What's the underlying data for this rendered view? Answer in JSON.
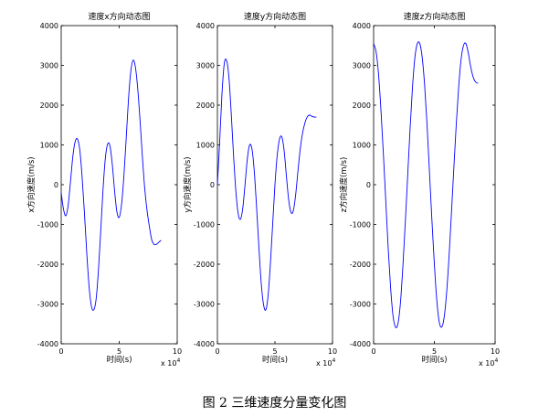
{
  "caption": "图 2  三维速度分量变化图",
  "chart_data": [
    {
      "type": "line",
      "title": "速度x方向动态图",
      "xlabel": "时间(s)",
      "ylabel": "x方向速度(m/s)",
      "xlim": [
        0,
        10
      ],
      "ylim": [
        -4000,
        4000
      ],
      "xticks": [
        0,
        5,
        10
      ],
      "yticks": [
        -4000,
        -3000,
        -2000,
        -1000,
        0,
        1000,
        2000,
        3000,
        4000
      ],
      "x_multiplier": "x 10^4",
      "grid": false,
      "series": [
        {
          "color": "#0000ff",
          "x": [
            0,
            0.2,
            0.4,
            0.6,
            0.8,
            1.0,
            1.2,
            1.4,
            1.6,
            1.8,
            2.0,
            2.2,
            2.4,
            2.6,
            2.8,
            3.0,
            3.2,
            3.4,
            3.6,
            3.8,
            4.0,
            4.2,
            4.4,
            4.6,
            4.8,
            5.0,
            5.2,
            5.4,
            5.6,
            5.8,
            6.0,
            6.2,
            6.4,
            6.6,
            6.8,
            7.0,
            7.2,
            7.4,
            7.6,
            7.8,
            8.0,
            8.2,
            8.4,
            8.6
          ],
          "y": [
            -200,
            -620,
            -780,
            -520,
            80,
            700,
            1080,
            1150,
            880,
            200,
            -700,
            -1700,
            -2550,
            -3050,
            -3150,
            -2900,
            -2200,
            -1200,
            -150,
            650,
            1020,
            980,
            520,
            -150,
            -680,
            -820,
            -500,
            200,
            1150,
            2150,
            2850,
            3130,
            2950,
            2400,
            1600,
            700,
            -100,
            -650,
            -1050,
            -1380,
            -1500,
            -1500,
            -1450,
            -1400
          ]
        }
      ]
    },
    {
      "type": "line",
      "title": "速度y方向动态图",
      "xlabel": "时间(s)",
      "ylabel": "y方向速度(m/s)",
      "xlim": [
        0,
        10
      ],
      "ylim": [
        -4000,
        4000
      ],
      "xticks": [
        0,
        5,
        10
      ],
      "yticks": [
        -4000,
        -3000,
        -2000,
        -1000,
        0,
        1000,
        2000,
        3000,
        4000
      ],
      "x_multiplier": "x 10^4",
      "grid": false,
      "series": [
        {
          "color": "#0000ff",
          "x": [
            0,
            0.2,
            0.4,
            0.6,
            0.8,
            1.0,
            1.2,
            1.4,
            1.6,
            1.8,
            2.0,
            2.2,
            2.4,
            2.6,
            2.8,
            3.0,
            3.2,
            3.4,
            3.6,
            3.8,
            4.0,
            4.2,
            4.4,
            4.6,
            4.8,
            5.0,
            5.2,
            5.4,
            5.6,
            5.8,
            6.0,
            6.2,
            6.4,
            6.6,
            6.8,
            7.0,
            7.2,
            7.4,
            7.6,
            7.8,
            8.0,
            8.2,
            8.4,
            8.6
          ],
          "y": [
            0,
            1100,
            2300,
            3050,
            3120,
            2700,
            1800,
            750,
            -150,
            -720,
            -870,
            -600,
            0,
            650,
            1000,
            900,
            350,
            -550,
            -1550,
            -2450,
            -3000,
            -3150,
            -2800,
            -2000,
            -1000,
            0,
            750,
            1150,
            1200,
            850,
            200,
            -400,
            -700,
            -650,
            -250,
            350,
            900,
            1300,
            1550,
            1700,
            1750,
            1720,
            1700,
            1700
          ]
        }
      ]
    },
    {
      "type": "line",
      "title": "速度z方向动态图",
      "xlabel": "时间(s)",
      "ylabel": "z方向速度(m/s)",
      "xlim": [
        0,
        10
      ],
      "ylim": [
        -4000,
        4000
      ],
      "xticks": [
        0,
        5,
        10
      ],
      "yticks": [
        -4000,
        -3000,
        -2000,
        -1000,
        0,
        1000,
        2000,
        3000,
        4000
      ],
      "x_multiplier": "x 10^4",
      "grid": false,
      "series": [
        {
          "color": "#0000ff",
          "x": [
            0,
            0.2,
            0.4,
            0.6,
            0.8,
            1.0,
            1.2,
            1.4,
            1.6,
            1.8,
            2.0,
            2.2,
            2.4,
            2.6,
            2.8,
            3.0,
            3.2,
            3.4,
            3.6,
            3.8,
            4.0,
            4.2,
            4.4,
            4.6,
            4.8,
            5.0,
            5.2,
            5.4,
            5.6,
            5.8,
            6.0,
            6.2,
            6.4,
            6.6,
            6.8,
            7.0,
            7.2,
            7.4,
            7.6,
            7.8,
            8.0,
            8.2,
            8.4,
            8.6
          ],
          "y": [
            3550,
            3350,
            2800,
            1900,
            800,
            -400,
            -1600,
            -2600,
            -3300,
            -3580,
            -3500,
            -3000,
            -2100,
            -1000,
            200,
            1400,
            2450,
            3200,
            3550,
            3550,
            3200,
            2500,
            1500,
            300,
            -900,
            -2000,
            -2900,
            -3450,
            -3580,
            -3350,
            -2750,
            -1850,
            -750,
            400,
            1500,
            2450,
            3150,
            3500,
            3550,
            3300,
            2950,
            2700,
            2580,
            2550
          ]
        }
      ]
    }
  ]
}
